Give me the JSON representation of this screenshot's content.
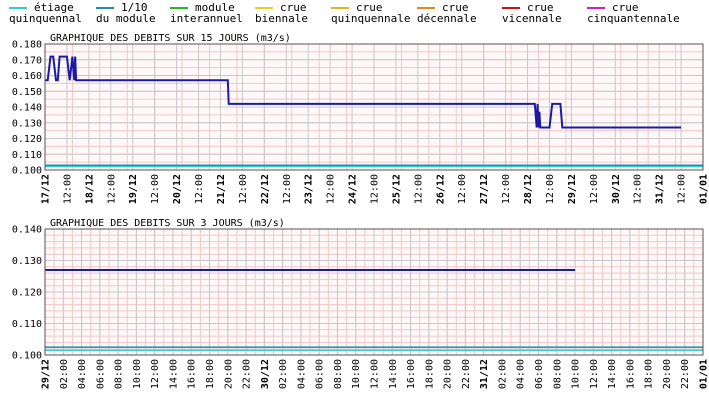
{
  "legend": {
    "items": [
      {
        "line1": "étiage",
        "line2": "quinquennal",
        "color": "#33cccc"
      },
      {
        "line1": "1/10",
        "line2": "du module",
        "color": "#1f8fb0"
      },
      {
        "line1": "module",
        "line2": "interannuel",
        "color": "#22bb22"
      },
      {
        "line1": "crue",
        "line2": "biennale",
        "color": "#e6d21a"
      },
      {
        "line1": "crue",
        "line2": "quinquennale",
        "color": "#e6b422"
      },
      {
        "line1": "crue",
        "line2": "décennale",
        "color": "#e08a1a"
      },
      {
        "line1": "crue",
        "line2": "vicennale",
        "color": "#cc1111"
      },
      {
        "line1": "crue",
        "line2": "cinquantennale",
        "color": "#cc22bb"
      }
    ]
  },
  "colors": {
    "series": "#1a1aa6",
    "etiage": "#33cccc",
    "dixieme": "#1f8fb0",
    "plot_background": "#fff8f8",
    "grid_fine": "#f0c8c8",
    "grid_major": "#c8c8c8"
  },
  "chart_data": [
    {
      "type": "line",
      "title": "GRAPHIQUE DES DEBITS SUR 15 JOURS (m3/s)",
      "ylim": [
        0.1,
        0.18
      ],
      "ytick_labels": [
        "0.180",
        "0.170",
        "0.160",
        "0.150",
        "0.140",
        "0.130",
        "0.120",
        "0.110",
        "0.100"
      ],
      "xlim_hours": [
        0,
        360
      ],
      "xtick_labels": [
        "17/12",
        "12:00",
        "18/12",
        "12:00",
        "19/12",
        "12:00",
        "20/12",
        "12:00",
        "21/12",
        "12:00",
        "22/12",
        "12:00",
        "23/12",
        "12:00",
        "24/12",
        "12:00",
        "25/12",
        "12:00",
        "26/12",
        "12:00",
        "27/12",
        "12:00",
        "28/12",
        "12:00",
        "29/12",
        "12:00",
        "30/12",
        "12:00",
        "31/12",
        "12:00",
        "01/01"
      ],
      "series": [
        {
          "x_hours": [
            0,
            1.5,
            3,
            4.5,
            6,
            7,
            8,
            9,
            10.5,
            12,
            13.5,
            15,
            16,
            16.5,
            17,
            17.5,
            18,
            18.5,
            24,
            48,
            72,
            96,
            100,
            100.5,
            108,
            120,
            144,
            168,
            192,
            216,
            240,
            264,
            268,
            269,
            269.5,
            270,
            270.5,
            271,
            271.5,
            272,
            276,
            277.5,
            282,
            283,
            288,
            312,
            336,
            348
          ],
          "values": [
            0.157,
            0.157,
            0.172,
            0.172,
            0.157,
            0.157,
            0.172,
            0.172,
            0.172,
            0.172,
            0.157,
            0.172,
            0.157,
            0.172,
            0.157,
            0.157,
            0.157,
            0.157,
            0.157,
            0.157,
            0.157,
            0.157,
            0.157,
            0.142,
            0.142,
            0.142,
            0.142,
            0.142,
            0.142,
            0.142,
            0.142,
            0.142,
            0.142,
            0.127,
            0.142,
            0.127,
            0.137,
            0.127,
            0.127,
            0.127,
            0.127,
            0.142,
            0.142,
            0.127,
            0.127,
            0.127,
            0.127,
            0.127
          ]
        }
      ],
      "reference_lines": [
        {
          "name": "étiage quinquennal",
          "value": 0.1022
        },
        {
          "name": "1/10 du module",
          "value": 0.103
        }
      ]
    },
    {
      "type": "line",
      "title": "GRAPHIQUE DES DEBITS SUR 3 JOURS (m3/s)",
      "ylim": [
        0.1,
        0.14
      ],
      "ytick_labels": [
        "0.140",
        "0.130",
        "0.120",
        "0.110",
        "0.100"
      ],
      "xlim_hours": [
        0,
        72
      ],
      "xtick_labels": [
        "29/12",
        "02:00",
        "04:00",
        "06:00",
        "08:00",
        "10:00",
        "12:00",
        "14:00",
        "16:00",
        "18:00",
        "20:00",
        "22:00",
        "30/12",
        "02:00",
        "04:00",
        "06:00",
        "08:00",
        "10:00",
        "12:00",
        "14:00",
        "16:00",
        "18:00",
        "20:00",
        "22:00",
        "31/12",
        "02:00",
        "04:00",
        "06:00",
        "08:00",
        "10:00",
        "12:00",
        "14:00",
        "16:00",
        "18:00",
        "20:00",
        "22:00",
        "01/01"
      ],
      "series": [
        {
          "x_hours": [
            0,
            58
          ],
          "values": [
            0.127,
            0.127
          ]
        }
      ],
      "reference_lines": [
        {
          "name": "étiage quinquennal",
          "value": 0.1015
        },
        {
          "name": "1/10 du module",
          "value": 0.1025
        }
      ]
    }
  ]
}
